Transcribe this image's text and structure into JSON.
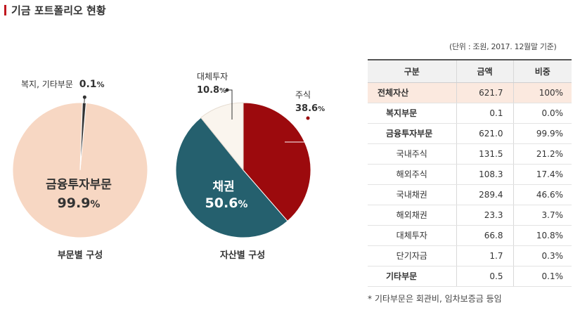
{
  "page_title": "기금 포트폴리오 현황",
  "unit_note": "(단위 : 조원, 2017. 12월말 기준)",
  "colors": {
    "title_bar": "#c0181f",
    "finance": "#f7d7c3",
    "welfare": "#333333",
    "bond": "#25606e",
    "stock": "#9c0a0d",
    "alt": "#faf5ee",
    "highlight_row": "#fbe9df"
  },
  "chart_data": [
    {
      "type": "pie",
      "title": "부문별 구성",
      "slices": [
        {
          "label": "금융투자부문",
          "value": 99.9,
          "value_label": "99.9",
          "unit": "%"
        },
        {
          "label": "복지, 기타부문",
          "value": 0.1,
          "value_label": "0.1",
          "unit": "%"
        }
      ]
    },
    {
      "type": "pie",
      "title": "자산별 구성",
      "slices": [
        {
          "label": "주식",
          "value": 38.6,
          "value_label": "38.6",
          "unit": "%"
        },
        {
          "label": "채권",
          "value": 50.6,
          "value_label": "50.6",
          "unit": "%"
        },
        {
          "label": "대체투자",
          "value": 10.8,
          "value_label": "10.8",
          "unit": "%"
        }
      ]
    }
  ],
  "table": {
    "headers": [
      "구분",
      "금액",
      "비중"
    ],
    "rows": [
      {
        "name": "전체자산",
        "amount": "621.7",
        "share": "100%",
        "level": 0,
        "highlight": true
      },
      {
        "name": "복지부문",
        "amount": "0.1",
        "share": "0.0%",
        "level": 1
      },
      {
        "name": "금융투자부문",
        "amount": "621.0",
        "share": "99.9%",
        "level": 1
      },
      {
        "name": "국내주식",
        "amount": "131.5",
        "share": "21.2%",
        "level": 2
      },
      {
        "name": "해외주식",
        "amount": "108.3",
        "share": "17.4%",
        "level": 2
      },
      {
        "name": "국내채권",
        "amount": "289.4",
        "share": "46.6%",
        "level": 2
      },
      {
        "name": "해외채권",
        "amount": "23.3",
        "share": "3.7%",
        "level": 2
      },
      {
        "name": "대체투자",
        "amount": "66.8",
        "share": "10.8%",
        "level": 2
      },
      {
        "name": "단기자금",
        "amount": "1.7",
        "share": "0.3%",
        "level": 2
      },
      {
        "name": "기타부문",
        "amount": "0.5",
        "share": "0.1%",
        "level": 1
      }
    ]
  },
  "footnote": "* 기타부문은 회관비, 임차보증금 등임"
}
